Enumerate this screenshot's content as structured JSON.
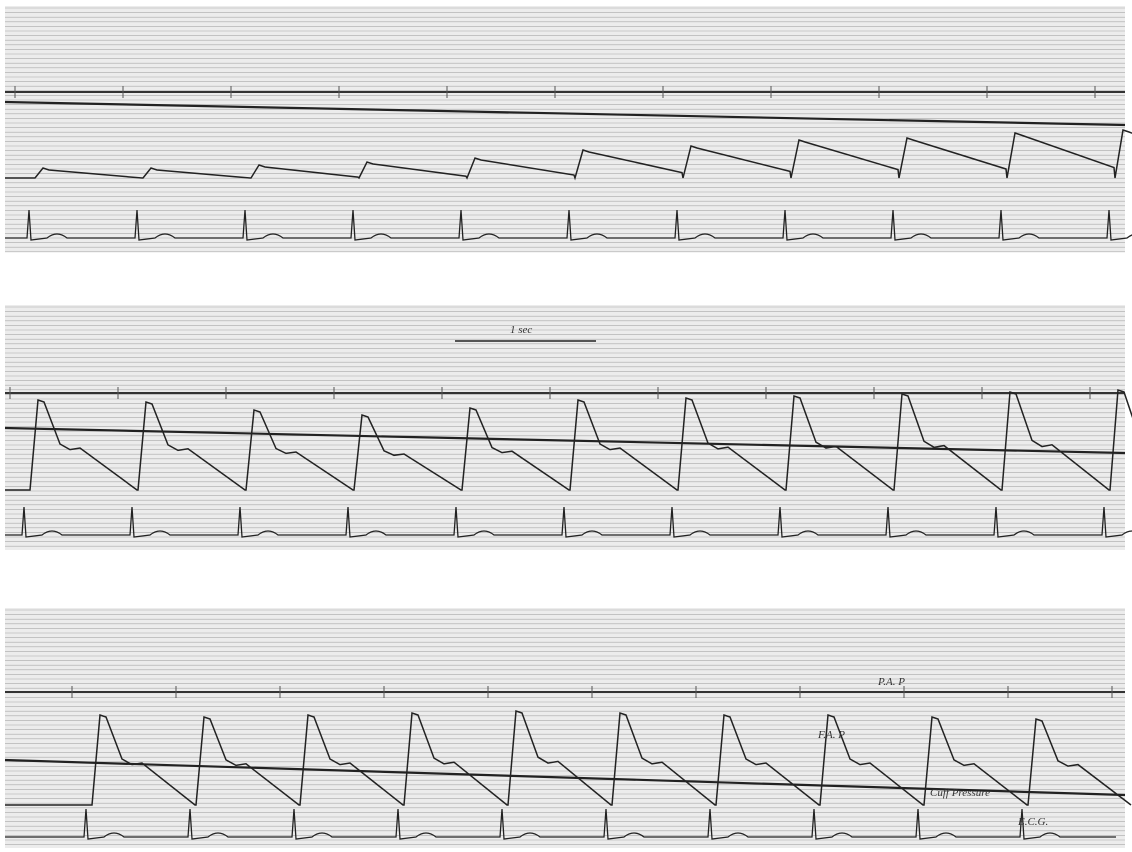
{
  "scale_label": "1 sec",
  "labels": {
    "pa": "P.A. P",
    "fa": "F.A. P",
    "cuff": "Cuff Pressure",
    "ecg": "E.C.G."
  }
}
